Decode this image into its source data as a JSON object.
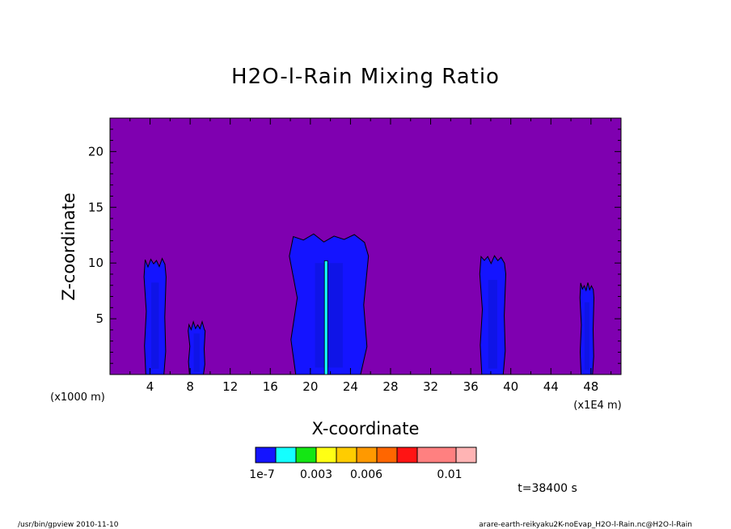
{
  "chart_data": {
    "type": "heatmap",
    "title": "H2O-l-Rain Mixing Ratio",
    "xlabel": "X-coordinate",
    "ylabel": "Z-coordinate",
    "x_unit_note_left": "(x1000 m)",
    "x_unit_note_right": "(x1E4 m)",
    "x_ticks": [
      "4",
      "8",
      "12",
      "16",
      "20",
      "24",
      "28",
      "32",
      "36",
      "40",
      "44",
      "48"
    ],
    "y_ticks": [
      "5",
      "10",
      "15",
      "20"
    ],
    "xlim": [
      0,
      51
    ],
    "ylim": [
      0,
      23
    ],
    "background_color": "#7f00b0",
    "plumes": [
      {
        "x_left": 3.4,
        "x_right": 5.6,
        "z_top": 10.3
      },
      {
        "x_left": 7.8,
        "x_right": 9.5,
        "z_top": 4.6
      },
      {
        "x_left": 17.9,
        "x_right": 25.8,
        "z_top": 12.5
      },
      {
        "x_left": 36.9,
        "x_right": 39.5,
        "z_top": 10.6
      },
      {
        "x_left": 46.9,
        "x_right": 48.3,
        "z_top": 8.1
      }
    ],
    "colorbar": {
      "colors": [
        "#1414ff",
        "#14ffff",
        "#14e614",
        "#ffff14",
        "#ffcc00",
        "#ff9900",
        "#ff6600",
        "#ff1414",
        "#ff8080",
        "#ffb4b4"
      ],
      "labels": [
        "1e-7",
        "0.003",
        "0.006",
        "0.01"
      ]
    },
    "time_label": "t=38400 s"
  },
  "footer": {
    "left": "/usr/bin/gpview  2010-11-10",
    "right": "arare-earth-reikyaku2K-noEvap_H2O-l-Rain.nc@H2O-l-Rain"
  }
}
